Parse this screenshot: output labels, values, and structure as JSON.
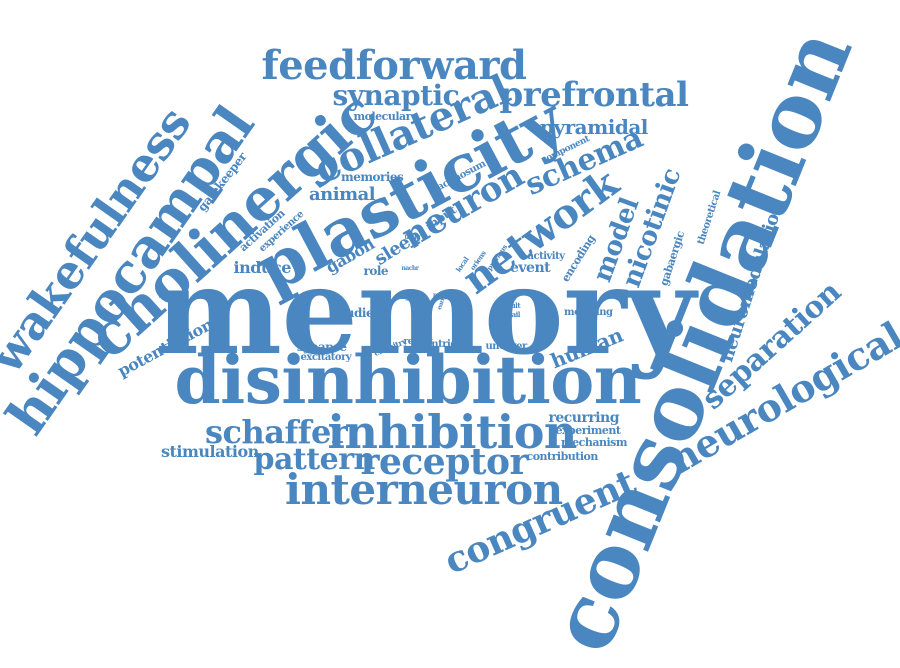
{
  "colors": {
    "word": "#4a86bf",
    "background": "#ffffff"
  },
  "words": [
    "memory",
    "consolidation",
    "disinhibition",
    "plasticity",
    "cholinergic",
    "hippocampal",
    "wakefulness",
    "inhibition",
    "interneuron",
    "neurological",
    "receptor",
    "pattern",
    "schaffer",
    "congruent",
    "collateral",
    "feedforward",
    "prefrontal",
    "network",
    "separation",
    "neuron",
    "synaptic",
    "schema",
    "model",
    "nicotinic",
    "neuromodulation",
    "pyramidal",
    "human",
    "animal",
    "stimulation",
    "potentiation",
    "induce",
    "sleep",
    "gabon",
    "memories",
    "studies",
    "synapse",
    "excitatory",
    "gatekeeper",
    "activation",
    "experience",
    "molecular",
    "lacunosum",
    "input",
    "role",
    "encoding",
    "event",
    "activity",
    "gabaergic",
    "theoretical",
    "component",
    "modeling",
    "recurring",
    "experiment",
    "mechanism",
    "contribution",
    "uncover",
    "intricate",
    "recent",
    "circuitry",
    "result",
    "detail",
    "stage",
    "nach",
    "local",
    "oriens",
    "previous",
    "nachr",
    "thing",
    "early"
  ]
}
